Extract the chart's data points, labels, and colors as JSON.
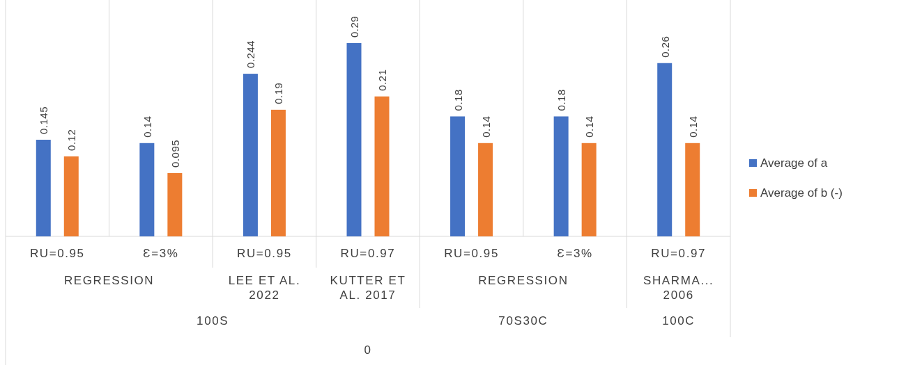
{
  "chart_data": {
    "type": "bar",
    "categories": [
      "RU=0.95",
      "Ɛ=3%",
      "RU=0.95",
      "RU=0.97",
      "RU=0.95",
      "Ɛ=3%",
      "RU=0.97"
    ],
    "series": [
      {
        "name": "Average of a",
        "color": "#4472c4",
        "values": [
          0.145,
          0.14,
          0.244,
          0.29,
          0.18,
          0.18,
          0.26
        ]
      },
      {
        "name": "Average of b (-)",
        "color": "#ed7d31",
        "values": [
          0.12,
          0.095,
          0.19,
          0.21,
          0.14,
          0.14,
          0.14
        ]
      }
    ],
    "relative": false,
    "data_labels": true,
    "legend": "right",
    "annotations": [
      "REGRESSION",
      "LEE ET AL. 2022",
      "KUTTER ET AL. 2017",
      "REGRESSION",
      "SHARMA... 2006",
      "100S",
      "70S30C",
      "100C",
      "0"
    ]
  }
}
